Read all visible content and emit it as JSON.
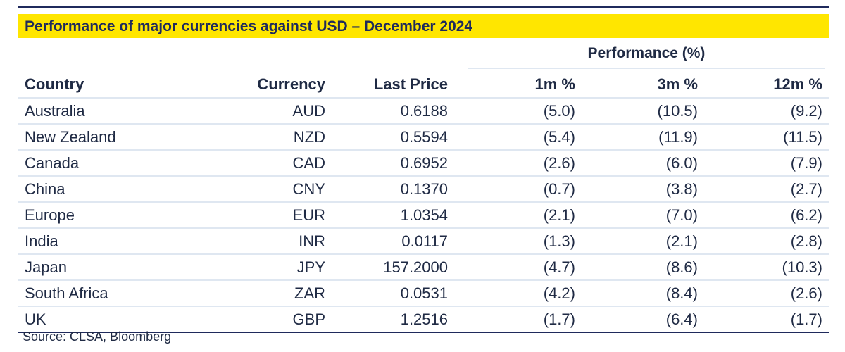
{
  "title": "Performance of major currencies against USD – December 2024",
  "group_header": "Performance (%)",
  "columns": {
    "country": "Country",
    "currency": "Currency",
    "last_price": "Last Price",
    "m1": "1m %",
    "m3": "3m %",
    "m12": "12m %"
  },
  "rows": [
    {
      "country": "Australia",
      "currency": "AUD",
      "last_price": "0.6188",
      "m1": "(5.0)",
      "m3": "(10.5)",
      "m12": "(9.2)"
    },
    {
      "country": "New Zealand",
      "currency": "NZD",
      "last_price": "0.5594",
      "m1": "(5.4)",
      "m3": "(11.9)",
      "m12": "(11.5)"
    },
    {
      "country": "Canada",
      "currency": "CAD",
      "last_price": "0.6952",
      "m1": "(2.6)",
      "m3": "(6.0)",
      "m12": "(7.9)"
    },
    {
      "country": "China",
      "currency": "CNY",
      "last_price": "0.1370",
      "m1": "(0.7)",
      "m3": "(3.8)",
      "m12": "(2.7)"
    },
    {
      "country": "Europe",
      "currency": "EUR",
      "last_price": "1.0354",
      "m1": "(2.1)",
      "m3": "(7.0)",
      "m12": "(6.2)"
    },
    {
      "country": "India",
      "currency": "INR",
      "last_price": "0.0117",
      "m1": "(1.3)",
      "m3": "(2.1)",
      "m12": "(2.8)"
    },
    {
      "country": "Japan",
      "currency": "JPY",
      "last_price": "157.2000",
      "m1": "(4.7)",
      "m3": "(8.6)",
      "m12": "(10.3)"
    },
    {
      "country": "South Africa",
      "currency": "ZAR",
      "last_price": "0.0531",
      "m1": "(4.2)",
      "m3": "(8.4)",
      "m12": "(2.6)"
    },
    {
      "country": "UK",
      "currency": "GBP",
      "last_price": "1.2516",
      "m1": "(1.7)",
      "m3": "(6.4)",
      "m12": "(1.7)"
    }
  ],
  "source": "Source: CLSA, Bloomberg",
  "colors": {
    "title_background": "#ffe600",
    "title_text": "#1f2a5c",
    "rule": "#1f2a5c",
    "row_divider": "#dfe7f1"
  }
}
